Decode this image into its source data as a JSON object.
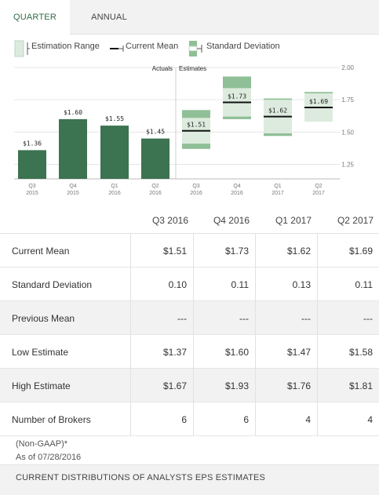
{
  "tabs": {
    "quarter": "QUARTER",
    "annual": "ANNUAL"
  },
  "legend": {
    "estimation_range": "Estimation Range",
    "current_mean": "Current Mean",
    "standard_deviation": "Standard Deviation"
  },
  "colors": {
    "accent": "#2e6b47",
    "actual_bar": "#3c7350",
    "range_fill": "#dcebde",
    "sd_fill": "#8fbf96",
    "mean_line": "#111111"
  },
  "chart_data": {
    "type": "bar",
    "section_labels": {
      "actuals": "Actuals",
      "estimates": "Estimates"
    },
    "categories": [
      [
        "Q3",
        "2015"
      ],
      [
        "Q4",
        "2015"
      ],
      [
        "Q1",
        "2016"
      ],
      [
        "Q2",
        "2016"
      ],
      [
        "Q3",
        "2016"
      ],
      [
        "Q4",
        "2016"
      ],
      [
        "Q1",
        "2017"
      ],
      [
        "Q2",
        "2017"
      ]
    ],
    "actuals": [
      {
        "value": 1.36,
        "label": "$1.36"
      },
      {
        "value": 1.6,
        "label": "$1.60"
      },
      {
        "value": 1.55,
        "label": "$1.55"
      },
      {
        "value": 1.45,
        "label": "$1.45"
      }
    ],
    "estimates": [
      {
        "low": 1.37,
        "high": 1.67,
        "mean": 1.51,
        "sd": 0.1,
        "label": "$1.51"
      },
      {
        "low": 1.6,
        "high": 1.93,
        "mean": 1.73,
        "sd": 0.11,
        "label": "$1.73"
      },
      {
        "low": 1.47,
        "high": 1.76,
        "mean": 1.62,
        "sd": 0.13,
        "label": "$1.62"
      },
      {
        "low": 1.58,
        "high": 1.81,
        "mean": 1.69,
        "sd": 0.11,
        "label": "$1.69"
      }
    ],
    "y_ticks": [
      "2.00",
      "1.75",
      "1.50",
      "1.25"
    ],
    "ylim": [
      1.15,
      2.0
    ],
    "grid": true
  },
  "table": {
    "columns": [
      "Q3 2016",
      "Q4 2016",
      "Q1 2017",
      "Q2 2017"
    ],
    "rows": [
      {
        "label": "Current Mean",
        "values": [
          "$1.51",
          "$1.73",
          "$1.62",
          "$1.69"
        ]
      },
      {
        "label": "Standard Deviation",
        "values": [
          "0.10",
          "0.11",
          "0.13",
          "0.11"
        ]
      },
      {
        "label": "Previous Mean",
        "values": [
          "---",
          "---",
          "---",
          "---"
        ]
      },
      {
        "label": "Low Estimate",
        "values": [
          "$1.37",
          "$1.60",
          "$1.47",
          "$1.58"
        ]
      },
      {
        "label": "High Estimate",
        "values": [
          "$1.67",
          "$1.93",
          "$1.76",
          "$1.81"
        ]
      },
      {
        "label": "Number of Brokers",
        "values": [
          "6",
          "6",
          "4",
          "4"
        ]
      }
    ]
  },
  "footnote": {
    "non_gaap": "(Non-GAAP)*",
    "as_of": "As of 07/28/2016"
  },
  "bottom_section": "CURRENT DISTRIBUTIONS OF ANALYSTS EPS ESTIMATES"
}
